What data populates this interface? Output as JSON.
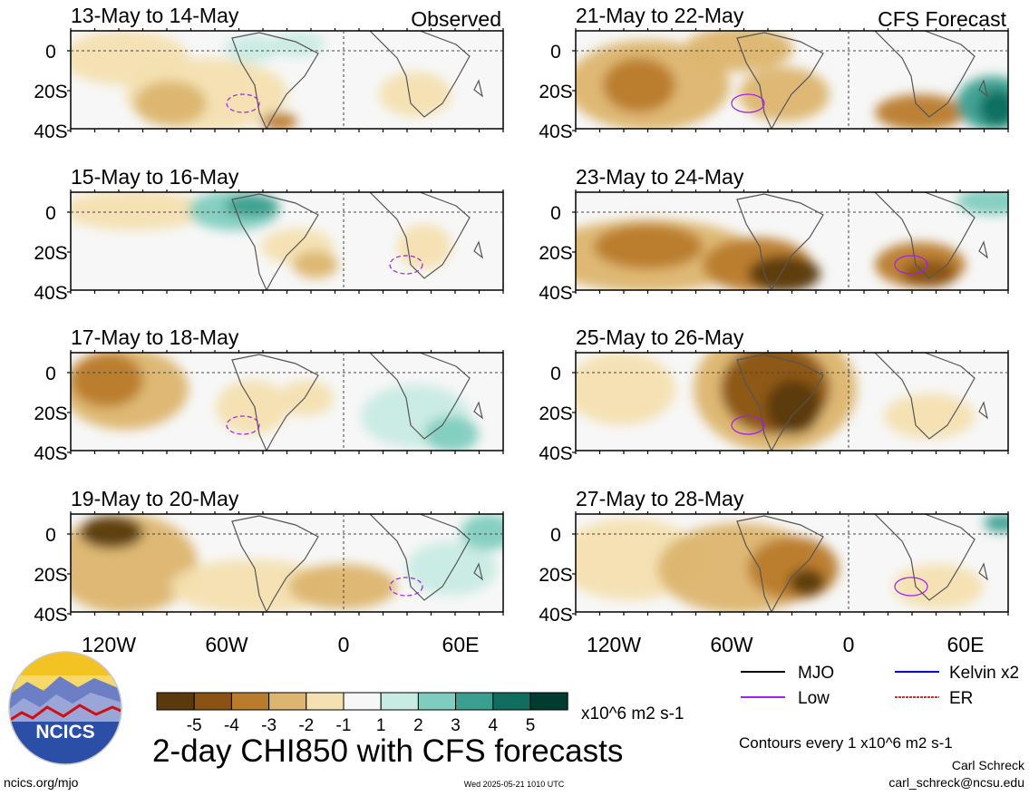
{
  "header": {
    "left_label": "Observed",
    "right_label": "CFS Forecast"
  },
  "panels": [
    {
      "date": "13-May to 14-May",
      "type": "observed"
    },
    {
      "date": "15-May to 16-May",
      "type": "observed"
    },
    {
      "date": "17-May to 18-May",
      "type": "observed"
    },
    {
      "date": "19-May to 20-May",
      "type": "observed"
    },
    {
      "date": "21-May to 22-May",
      "type": "forecast"
    },
    {
      "date": "23-May to 24-May",
      "type": "forecast"
    },
    {
      "date": "25-May to 26-May",
      "type": "forecast"
    },
    {
      "date": "27-May to 28-May",
      "type": "forecast"
    }
  ],
  "axes": {
    "lat_labels": [
      "0",
      "20S",
      "40S"
    ],
    "lon_labels": [
      "120W",
      "60W",
      "0",
      "60E"
    ]
  },
  "colorbar": {
    "tick_labels": [
      "-5",
      "-4",
      "-3",
      "-2",
      "-1",
      "1",
      "2",
      "3",
      "4",
      "5"
    ],
    "units": "x10^6 m2 s-1",
    "colors": [
      "#5a3a0d",
      "#8a5314",
      "#b97b2c",
      "#dcb56e",
      "#f4e0b0",
      "#f7f7f7",
      "#c8ebe3",
      "#7fcdbf",
      "#3a9f8f",
      "#0f6e5f",
      "#003c30"
    ]
  },
  "legend": {
    "items": [
      {
        "label": "MJO",
        "color": "#000000"
      },
      {
        "label": "Kelvin x2",
        "color": "#0000ee"
      },
      {
        "label": "Low",
        "color": "#a020f0"
      },
      {
        "label": "ER",
        "color": "#ee2222"
      }
    ],
    "contour_note": "Contours every 1 x10^6 m2 s-1"
  },
  "title": "2-day CHI850 with CFS forecasts",
  "logo": {
    "text": "NCICS"
  },
  "footer": {
    "url": "ncics.org/mjo",
    "timestamp": "Wed 2025-05-21 1010 UTC",
    "author": "Carl Schreck",
    "email": "carl_schreck@ncsu.edu"
  }
}
